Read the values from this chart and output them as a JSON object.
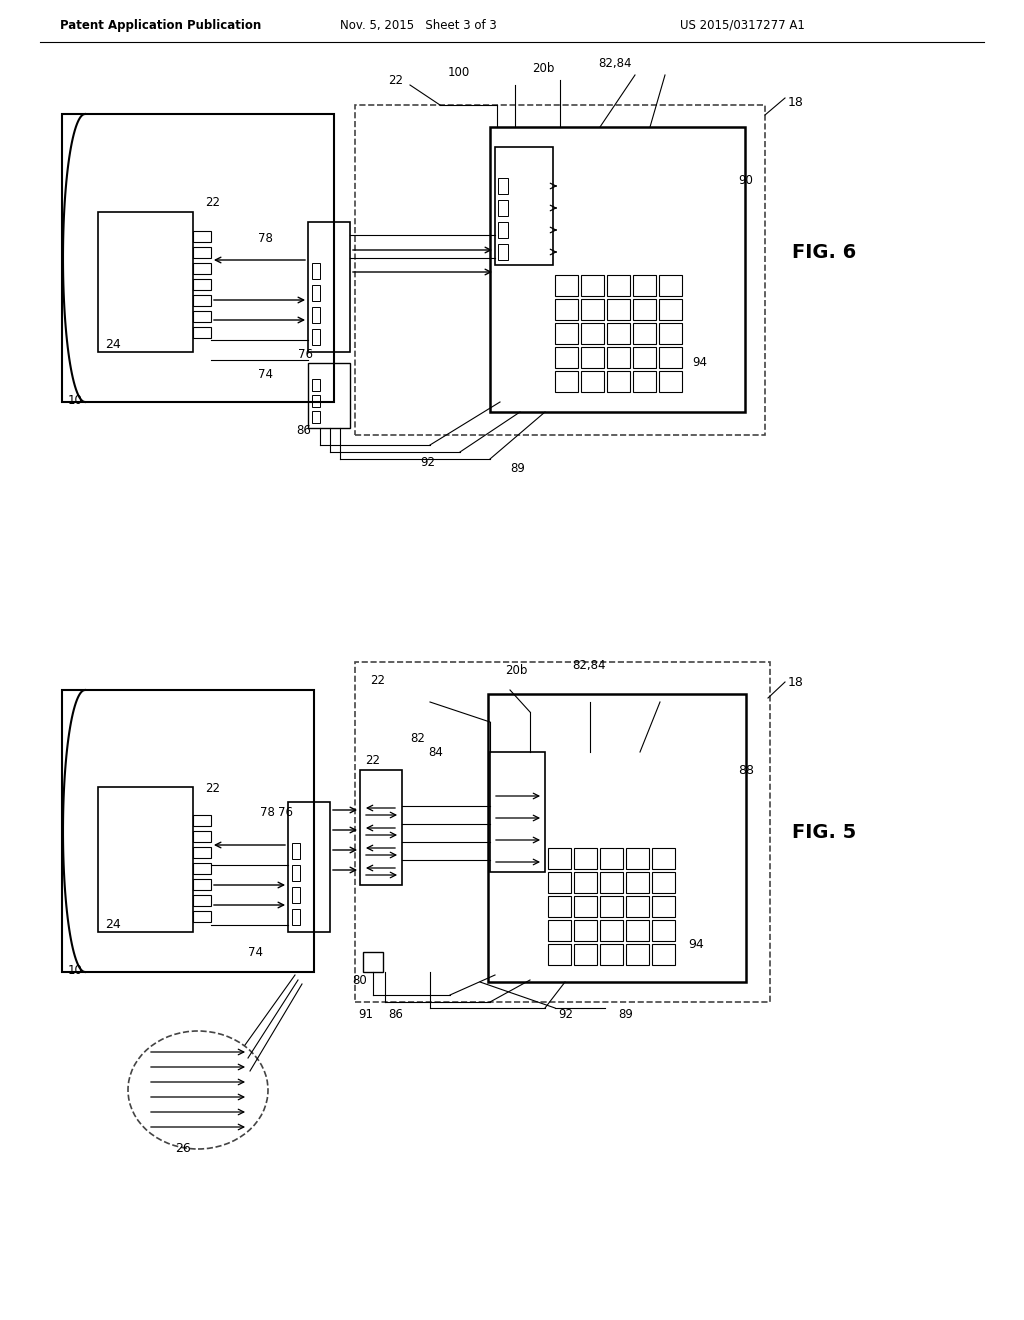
{
  "bg_color": "#ffffff",
  "line_color": "#000000",
  "header_left": "Patent Application Publication",
  "header_center": "Nov. 5, 2015   Sheet 3 of 3",
  "header_right": "US 2015/0317277 A1",
  "fig6_label": "FIG. 6",
  "fig5_label": "FIG. 5"
}
